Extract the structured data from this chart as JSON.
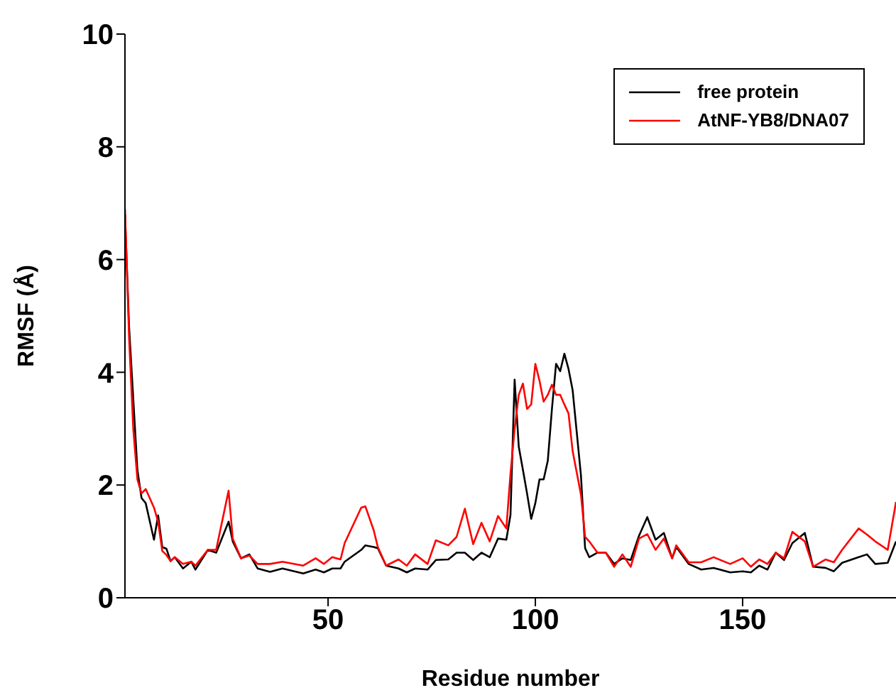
{
  "chart_data": {
    "type": "line",
    "xlabel": "Residue number",
    "ylabel": "RMSF (Å)",
    "xlim": [
      1,
      187
    ],
    "xticks": [
      50,
      100,
      150
    ],
    "ylim": [
      0,
      10
    ],
    "yticks": [
      0,
      2,
      4,
      6,
      8,
      10
    ],
    "grid": false,
    "legend": "top right",
    "marker": "none",
    "line_style": "solid",
    "series": [
      {
        "name": "free protein",
        "color": "#000000",
        "x": [
          1,
          2,
          4,
          5,
          6,
          8,
          9,
          10,
          11,
          12,
          13,
          15,
          17,
          18,
          21,
          23,
          26,
          27,
          29,
          31,
          33,
          36,
          39,
          44,
          47,
          49,
          51,
          53,
          54,
          58,
          59,
          61,
          62,
          64,
          67,
          69,
          71,
          74,
          76,
          79,
          81,
          83,
          85,
          87,
          89,
          91,
          93,
          94,
          95,
          96,
          97,
          98,
          99,
          100,
          101,
          102,
          103,
          104,
          105,
          106,
          107,
          108,
          109,
          111,
          112,
          113,
          115,
          117,
          119,
          121,
          123,
          125,
          127,
          129,
          131,
          133,
          134,
          137,
          140,
          143,
          147,
          150,
          152,
          154,
          156,
          158,
          160,
          162,
          165,
          167,
          170,
          172,
          174,
          178,
          180,
          182,
          185,
          187
        ],
        "values": [
          6.8,
          4.8,
          2.27,
          1.77,
          1.68,
          1.03,
          1.46,
          0.9,
          0.87,
          0.65,
          0.72,
          0.52,
          0.64,
          0.5,
          0.85,
          0.8,
          1.35,
          1.0,
          0.7,
          0.77,
          0.52,
          0.46,
          0.52,
          0.43,
          0.5,
          0.45,
          0.52,
          0.52,
          0.64,
          0.85,
          0.93,
          0.9,
          0.88,
          0.57,
          0.52,
          0.45,
          0.52,
          0.5,
          0.67,
          0.68,
          0.8,
          0.8,
          0.67,
          0.8,
          0.72,
          1.05,
          1.03,
          1.47,
          3.87,
          2.68,
          2.27,
          1.85,
          1.4,
          1.68,
          2.1,
          2.1,
          2.43,
          3.35,
          4.15,
          4.02,
          4.33,
          4.06,
          3.68,
          2.17,
          0.88,
          0.72,
          0.8,
          0.8,
          0.6,
          0.7,
          0.67,
          1.1,
          1.43,
          1.03,
          1.15,
          0.7,
          0.9,
          0.6,
          0.5,
          0.53,
          0.45,
          0.47,
          0.45,
          0.57,
          0.5,
          0.8,
          0.67,
          0.97,
          1.15,
          0.55,
          0.53,
          0.47,
          0.62,
          0.72,
          0.77,
          0.6,
          0.62,
          1.0
        ]
      },
      {
        "name": "AtNF-YB8/DNA07",
        "color": "#ff0000",
        "x": [
          1,
          2,
          3,
          4,
          5,
          6,
          8,
          9,
          10,
          11,
          12,
          13,
          15,
          17,
          18,
          21,
          23,
          26,
          27,
          29,
          31,
          33,
          36,
          39,
          44,
          47,
          49,
          51,
          53,
          54,
          58,
          59,
          61,
          62,
          64,
          67,
          69,
          71,
          74,
          76,
          79,
          81,
          83,
          85,
          87,
          89,
          91,
          93,
          94,
          95,
          96,
          97,
          98,
          99,
          100,
          101,
          102,
          103,
          104,
          105,
          106,
          107,
          108,
          109,
          111,
          112,
          113,
          115,
          117,
          119,
          121,
          123,
          125,
          127,
          129,
          131,
          133,
          134,
          137,
          140,
          143,
          147,
          150,
          152,
          154,
          156,
          158,
          160,
          162,
          165,
          167,
          170,
          172,
          174,
          178,
          180,
          182,
          185,
          187
        ],
        "values": [
          6.9,
          4.6,
          3.0,
          2.1,
          1.85,
          1.93,
          1.6,
          1.35,
          0.83,
          0.76,
          0.65,
          0.72,
          0.6,
          0.64,
          0.57,
          0.85,
          0.85,
          1.9,
          1.05,
          0.7,
          0.75,
          0.6,
          0.6,
          0.64,
          0.57,
          0.7,
          0.6,
          0.72,
          0.68,
          0.97,
          1.6,
          1.62,
          1.2,
          0.9,
          0.57,
          0.68,
          0.57,
          0.77,
          0.6,
          1.02,
          0.93,
          1.08,
          1.58,
          0.95,
          1.33,
          1.0,
          1.45,
          1.23,
          2.2,
          3.0,
          3.6,
          3.8,
          3.35,
          3.43,
          4.15,
          3.85,
          3.48,
          3.6,
          3.78,
          3.6,
          3.6,
          3.43,
          3.27,
          2.6,
          1.83,
          1.08,
          1.0,
          0.8,
          0.8,
          0.55,
          0.77,
          0.55,
          1.05,
          1.13,
          0.85,
          1.05,
          0.7,
          0.93,
          0.63,
          0.63,
          0.72,
          0.6,
          0.7,
          0.55,
          0.68,
          0.6,
          0.8,
          0.7,
          1.17,
          1.0,
          0.55,
          0.68,
          0.63,
          0.85,
          1.23,
          1.12,
          1.0,
          0.85,
          1.7
        ]
      }
    ]
  }
}
